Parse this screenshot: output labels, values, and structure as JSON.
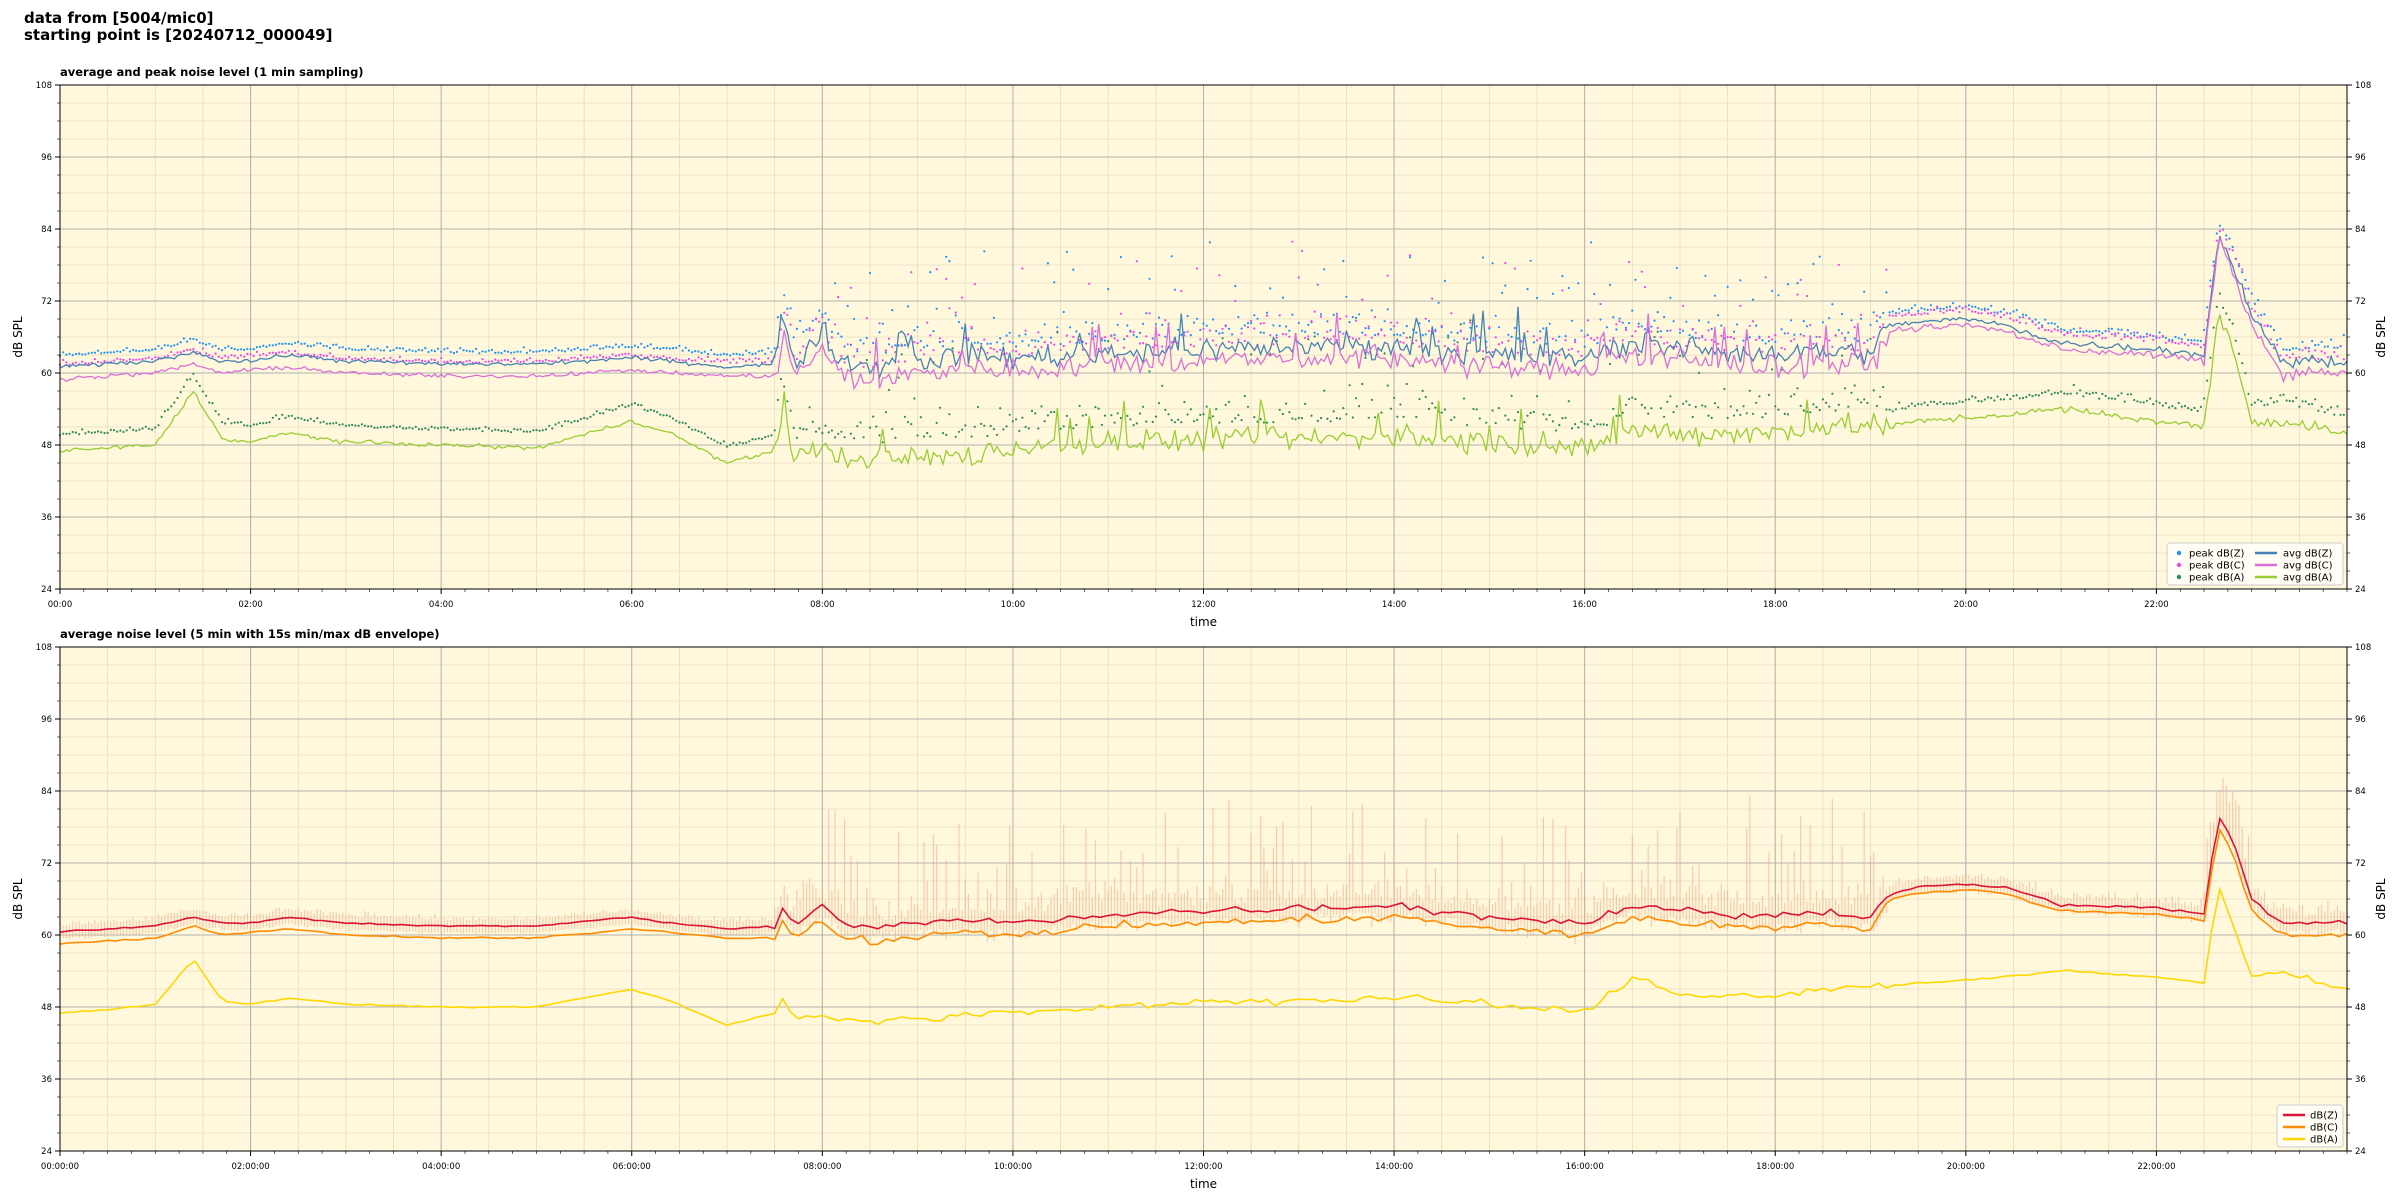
{
  "header": {
    "line1": "data from [5004/mic0]",
    "line2": "starting point is [20240712_000049]"
  },
  "colors": {
    "plot_bg": "#fff8dc",
    "peak_z": "#1e90ff",
    "peak_c": "#ee44ee",
    "peak_a": "#2e8b57",
    "avg_z": "#4682b4",
    "avg_c": "#da70d6",
    "avg_a": "#9acd32",
    "db_z": "#dc143c",
    "db_c": "#ff8c00",
    "db_a": "#ffd700",
    "envelope": "#f4a582"
  },
  "chart_data": [
    {
      "type": "line",
      "title": "average and peak noise level (1 min sampling)",
      "xlabel": "time",
      "ylabel": "dB SPL",
      "ylim": [
        24,
        108
      ],
      "xlim_hours": [
        0,
        24
      ],
      "yticks": [
        "108",
        "96",
        "84",
        "72",
        "60",
        "48",
        "36",
        "24"
      ],
      "xticks": [
        "00:00",
        "02:00",
        "04:00",
        "06:00",
        "08:00",
        "10:00",
        "12:00",
        "14:00",
        "16:00",
        "18:00",
        "20:00",
        "22:00"
      ],
      "grid": true,
      "legend_position": "lower-right",
      "legend": [
        "peak dB(Z)",
        "peak dB(C)",
        "peak dB(A)",
        "avg dB(Z)",
        "avg dB(C)",
        "avg dB(A)"
      ],
      "x_hours": [
        0,
        0.5,
        1,
        1.4,
        1.7,
        2,
        2.4,
        3,
        4,
        5,
        6,
        6.4,
        7,
        7.5,
        7.6,
        7.7,
        8,
        8.2,
        8.5,
        9,
        9.5,
        10,
        11,
        12,
        13,
        14,
        15,
        16,
        16.5,
        17,
        18,
        18.5,
        19,
        19.2,
        19.5,
        20,
        20.4,
        21,
        22,
        22.5,
        22.65,
        22.8,
        23,
        23.3,
        24
      ],
      "series": [
        {
          "name": "avg dB(Z)",
          "values": [
            61,
            61.5,
            62,
            63.5,
            62,
            62,
            63,
            62,
            61.5,
            61.5,
            62.5,
            62,
            61,
            61.5,
            70,
            61.5,
            67,
            62,
            61,
            62,
            63,
            62.5,
            63.5,
            64,
            64.5,
            64.5,
            63,
            62.5,
            65,
            64,
            63,
            64,
            63,
            68,
            68.5,
            69,
            68,
            65,
            64,
            63,
            83,
            78,
            70,
            62,
            62
          ]
        },
        {
          "name": "avg dB(C)",
          "values": [
            59,
            59.5,
            60,
            61.5,
            60,
            60.5,
            61,
            60,
            59.5,
            59.5,
            60.5,
            60,
            59.5,
            59.5,
            66,
            59.5,
            64,
            59.5,
            58.5,
            60,
            61,
            60.5,
            61.5,
            62,
            62.5,
            62.5,
            61,
            60.5,
            63,
            62,
            61,
            62,
            61,
            67,
            67.5,
            68,
            67,
            64,
            63,
            62,
            82,
            77,
            68,
            60,
            60
          ]
        },
        {
          "name": "avg dB(A)",
          "values": [
            47,
            47.5,
            48,
            57,
            49,
            48.5,
            50,
            48.5,
            48,
            47.5,
            52,
            50,
            45,
            47,
            55,
            46.5,
            47,
            46,
            45.5,
            46,
            46,
            47.5,
            48.5,
            49,
            49,
            49.5,
            48.5,
            47,
            50.5,
            50,
            50,
            51,
            51.5,
            51,
            52,
            52.5,
            53,
            54,
            52,
            51,
            70,
            64,
            52,
            52,
            50
          ]
        }
      ]
    },
    {
      "type": "line",
      "title": "average noise level (5 min with 15s min/max dB envelope)",
      "xlabel": "time",
      "ylabel": "dB SPL",
      "ylim": [
        24,
        108
      ],
      "xlim_hours": [
        0,
        24
      ],
      "yticks": [
        "108",
        "96",
        "84",
        "72",
        "60",
        "48",
        "36",
        "24"
      ],
      "xticks": [
        "00:00:00",
        "02:00:00",
        "04:00:00",
        "06:00:00",
        "08:00:00",
        "10:00:00",
        "12:00:00",
        "14:00:00",
        "16:00:00",
        "18:00:00",
        "20:00:00",
        "22:00:00"
      ],
      "grid": true,
      "legend_position": "lower-right",
      "legend": [
        "dB(Z)",
        "dB(C)",
        "dB(A)"
      ],
      "x_hours": [
        0,
        0.5,
        1,
        1.4,
        1.7,
        2,
        2.4,
        3,
        4,
        5,
        6,
        6.4,
        7,
        7.5,
        7.6,
        7.7,
        8,
        8.2,
        8.5,
        9,
        9.5,
        10,
        11,
        12,
        13,
        14,
        15,
        16,
        16.5,
        17,
        18,
        18.5,
        19,
        19.2,
        19.5,
        20,
        20.4,
        21,
        22,
        22.5,
        22.65,
        22.8,
        23,
        23.3,
        24
      ],
      "series": [
        {
          "name": "dB(Z)",
          "values": [
            60.5,
            61,
            61.5,
            63,
            62,
            62,
            63,
            62,
            61.5,
            61.5,
            63,
            62,
            61,
            61.5,
            65,
            61.5,
            65,
            62,
            61,
            62,
            62.5,
            62,
            63.5,
            64,
            64.5,
            65,
            63,
            62,
            65,
            64,
            63,
            64,
            63,
            67,
            68,
            68.5,
            68,
            65,
            64.5,
            63.5,
            80,
            76,
            66,
            62,
            62
          ]
        },
        {
          "name": "dB(C)",
          "values": [
            58.5,
            59,
            59.5,
            61.5,
            60,
            60.5,
            61,
            60,
            59.5,
            59.5,
            61,
            60.5,
            59.5,
            59.5,
            63,
            59.5,
            62.5,
            60,
            59,
            59.5,
            60.5,
            60,
            61.5,
            62,
            62.5,
            63,
            61,
            60,
            63,
            62,
            61,
            62,
            61,
            66,
            67,
            67.5,
            67,
            64,
            63.5,
            62.5,
            78,
            74,
            64,
            60,
            60
          ]
        },
        {
          "name": "dB(A)",
          "values": [
            47,
            47.5,
            48.5,
            56,
            49,
            48.5,
            49.5,
            48.5,
            48,
            48,
            51,
            49,
            45,
            47,
            50,
            46.5,
            46.5,
            46,
            45.5,
            46,
            46.5,
            47,
            48,
            49,
            49,
            49.5,
            48.5,
            47,
            53,
            50,
            50,
            51,
            51.5,
            51.5,
            52,
            52.5,
            53,
            54,
            53,
            52,
            68,
            62,
            53,
            54,
            51
          ]
        }
      ]
    }
  ]
}
